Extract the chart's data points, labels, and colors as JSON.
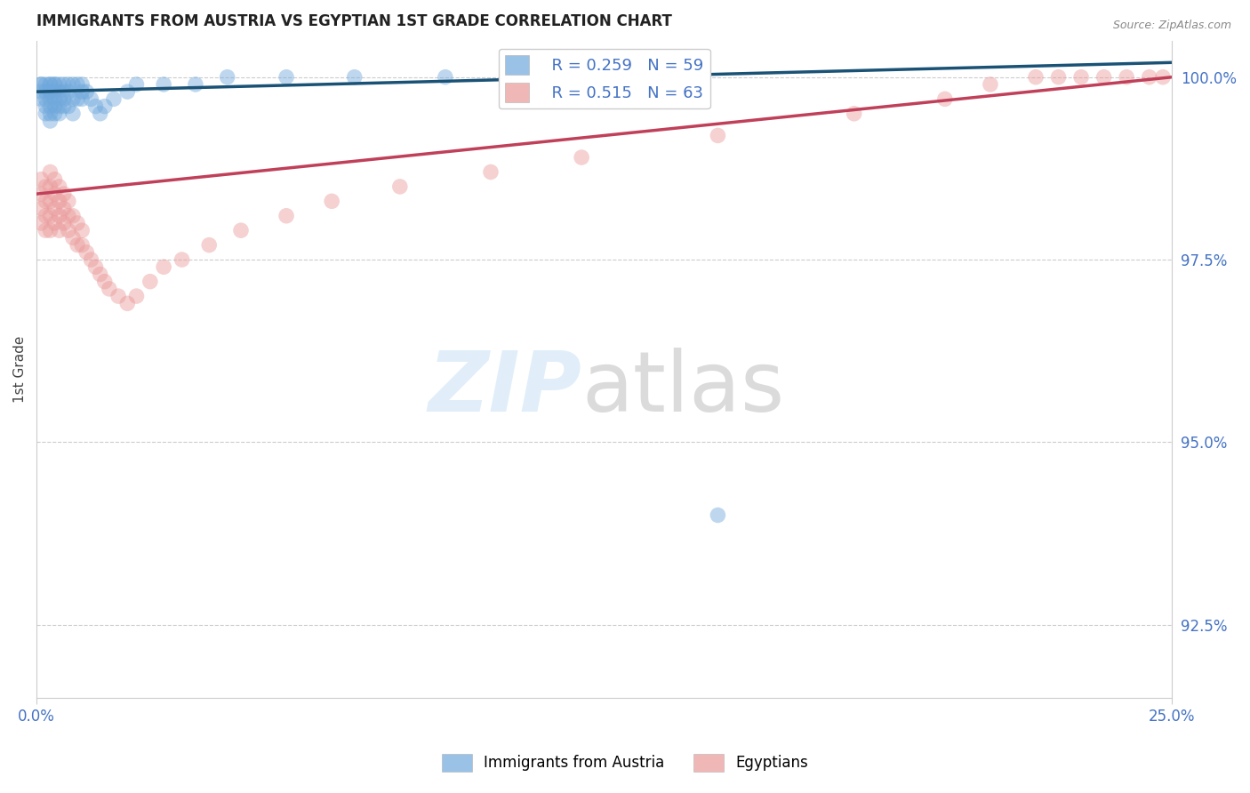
{
  "title": "IMMIGRANTS FROM AUSTRIA VS EGYPTIAN 1ST GRADE CORRELATION CHART",
  "source": "Source: ZipAtlas.com",
  "ylabel": "1st Grade",
  "ylabel_right_labels": [
    "100.0%",
    "97.5%",
    "95.0%",
    "92.5%"
  ],
  "ylabel_right_values": [
    1.0,
    0.975,
    0.95,
    0.925
  ],
  "blue_R": "R = 0.259",
  "blue_N": "N = 59",
  "pink_R": "R = 0.515",
  "pink_N": "N = 63",
  "blue_color": "#6fa8dc",
  "pink_color": "#ea9999",
  "blue_line_color": "#1a5276",
  "pink_line_color": "#c0405a",
  "legend_label_blue": "Immigrants from Austria",
  "legend_label_pink": "Egyptians",
  "blue_line": {
    "x0": 0.0,
    "y0": 0.998,
    "x1": 0.25,
    "y1": 1.002
  },
  "pink_line": {
    "x0": 0.0,
    "y0": 0.984,
    "x1": 0.25,
    "y1": 1.0
  },
  "blue_scatter": {
    "x": [
      0.001,
      0.001,
      0.001,
      0.001,
      0.002,
      0.002,
      0.002,
      0.002,
      0.002,
      0.003,
      0.003,
      0.003,
      0.003,
      0.003,
      0.003,
      0.003,
      0.003,
      0.004,
      0.004,
      0.004,
      0.004,
      0.004,
      0.004,
      0.005,
      0.005,
      0.005,
      0.005,
      0.005,
      0.006,
      0.006,
      0.006,
      0.006,
      0.007,
      0.007,
      0.007,
      0.008,
      0.008,
      0.008,
      0.009,
      0.009,
      0.01,
      0.01,
      0.01,
      0.011,
      0.012,
      0.013,
      0.014,
      0.015,
      0.017,
      0.02,
      0.022,
      0.028,
      0.035,
      0.042,
      0.055,
      0.07,
      0.09,
      0.12,
      0.15
    ],
    "y": [
      0.999,
      0.999,
      0.998,
      0.997,
      0.999,
      0.998,
      0.997,
      0.996,
      0.995,
      0.999,
      0.999,
      0.998,
      0.998,
      0.997,
      0.996,
      0.995,
      0.994,
      0.999,
      0.999,
      0.998,
      0.997,
      0.996,
      0.995,
      0.999,
      0.998,
      0.997,
      0.996,
      0.995,
      0.999,
      0.998,
      0.997,
      0.996,
      0.999,
      0.998,
      0.996,
      0.999,
      0.997,
      0.995,
      0.999,
      0.997,
      0.999,
      0.998,
      0.997,
      0.998,
      0.997,
      0.996,
      0.995,
      0.996,
      0.997,
      0.998,
      0.999,
      0.999,
      0.999,
      1.0,
      1.0,
      1.0,
      1.0,
      1.0,
      0.94
    ]
  },
  "pink_scatter": {
    "x": [
      0.001,
      0.001,
      0.001,
      0.001,
      0.002,
      0.002,
      0.002,
      0.002,
      0.003,
      0.003,
      0.003,
      0.003,
      0.003,
      0.004,
      0.004,
      0.004,
      0.004,
      0.005,
      0.005,
      0.005,
      0.005,
      0.006,
      0.006,
      0.006,
      0.007,
      0.007,
      0.007,
      0.008,
      0.008,
      0.009,
      0.009,
      0.01,
      0.01,
      0.011,
      0.012,
      0.013,
      0.014,
      0.015,
      0.016,
      0.018,
      0.02,
      0.022,
      0.025,
      0.028,
      0.032,
      0.038,
      0.045,
      0.055,
      0.065,
      0.08,
      0.1,
      0.12,
      0.15,
      0.18,
      0.2,
      0.21,
      0.22,
      0.225,
      0.23,
      0.235,
      0.24,
      0.245,
      0.248
    ],
    "y": [
      0.986,
      0.984,
      0.982,
      0.98,
      0.985,
      0.983,
      0.981,
      0.979,
      0.987,
      0.985,
      0.983,
      0.981,
      0.979,
      0.986,
      0.984,
      0.982,
      0.98,
      0.985,
      0.983,
      0.981,
      0.979,
      0.984,
      0.982,
      0.98,
      0.983,
      0.981,
      0.979,
      0.981,
      0.978,
      0.98,
      0.977,
      0.979,
      0.977,
      0.976,
      0.975,
      0.974,
      0.973,
      0.972,
      0.971,
      0.97,
      0.969,
      0.97,
      0.972,
      0.974,
      0.975,
      0.977,
      0.979,
      0.981,
      0.983,
      0.985,
      0.987,
      0.989,
      0.992,
      0.995,
      0.997,
      0.999,
      1.0,
      1.0,
      1.0,
      1.0,
      1.0,
      1.0,
      1.0
    ]
  },
  "xlim": [
    0.0,
    0.25
  ],
  "ylim": [
    0.915,
    1.005
  ]
}
